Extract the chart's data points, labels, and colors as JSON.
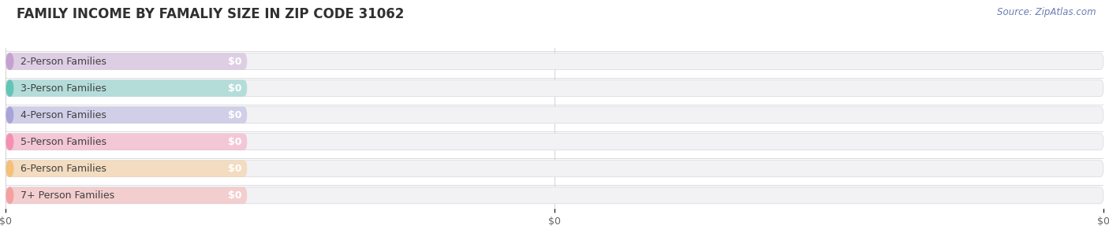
{
  "title": "FAMILY INCOME BY FAMALIY SIZE IN ZIP CODE 31062",
  "source_text": "Source: ZipAtlas.com",
  "categories": [
    "2-Person Families",
    "3-Person Families",
    "4-Person Families",
    "5-Person Families",
    "6-Person Families",
    "7+ Person Families"
  ],
  "values": [
    0,
    0,
    0,
    0,
    0,
    0
  ],
  "bar_colors": [
    "#c5a0d0",
    "#65c4b8",
    "#a8a4d8",
    "#f590b0",
    "#f5c07a",
    "#f5a0a0"
  ],
  "value_labels": [
    "$0",
    "$0",
    "$0",
    "$0",
    "$0",
    "$0"
  ],
  "bar_bg_color": "#f2f2f5",
  "background_color": "#ffffff",
  "title_fontsize": 12,
  "source_fontsize": 8.5,
  "label_fontsize": 9,
  "tick_fontsize": 9
}
